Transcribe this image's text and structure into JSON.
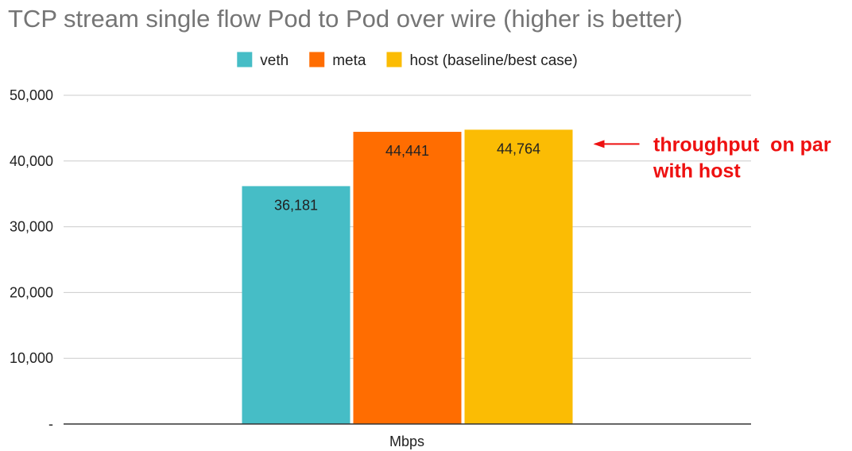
{
  "chart_data": {
    "type": "bar",
    "title": "TCP stream single flow Pod to Pod over wire (higher is better)",
    "xlabel": "Mbps",
    "ylabel": "",
    "ylim": [
      0,
      50000
    ],
    "yticks": [
      0,
      10000,
      20000,
      30000,
      40000,
      50000
    ],
    "ytick_labels": [
      "-",
      "10,000",
      "20,000",
      "30,000",
      "40,000",
      "50,000"
    ],
    "grid": true,
    "legend_position": "top",
    "categories": [
      "Mbps"
    ],
    "series": [
      {
        "name": "veth",
        "values": [
          36181
        ],
        "label": "36,181",
        "color": "#46bdc6"
      },
      {
        "name": "meta",
        "values": [
          44441
        ],
        "label": "44,441",
        "color": "#ff6d01"
      },
      {
        "name": "host (baseline/best case)",
        "values": [
          44764
        ],
        "label": "44,764",
        "color": "#fbbc04"
      }
    ],
    "annotation": {
      "lines": [
        "throughput  on par",
        "with host"
      ],
      "color": "#ee1111",
      "points_to_series": 2
    }
  }
}
